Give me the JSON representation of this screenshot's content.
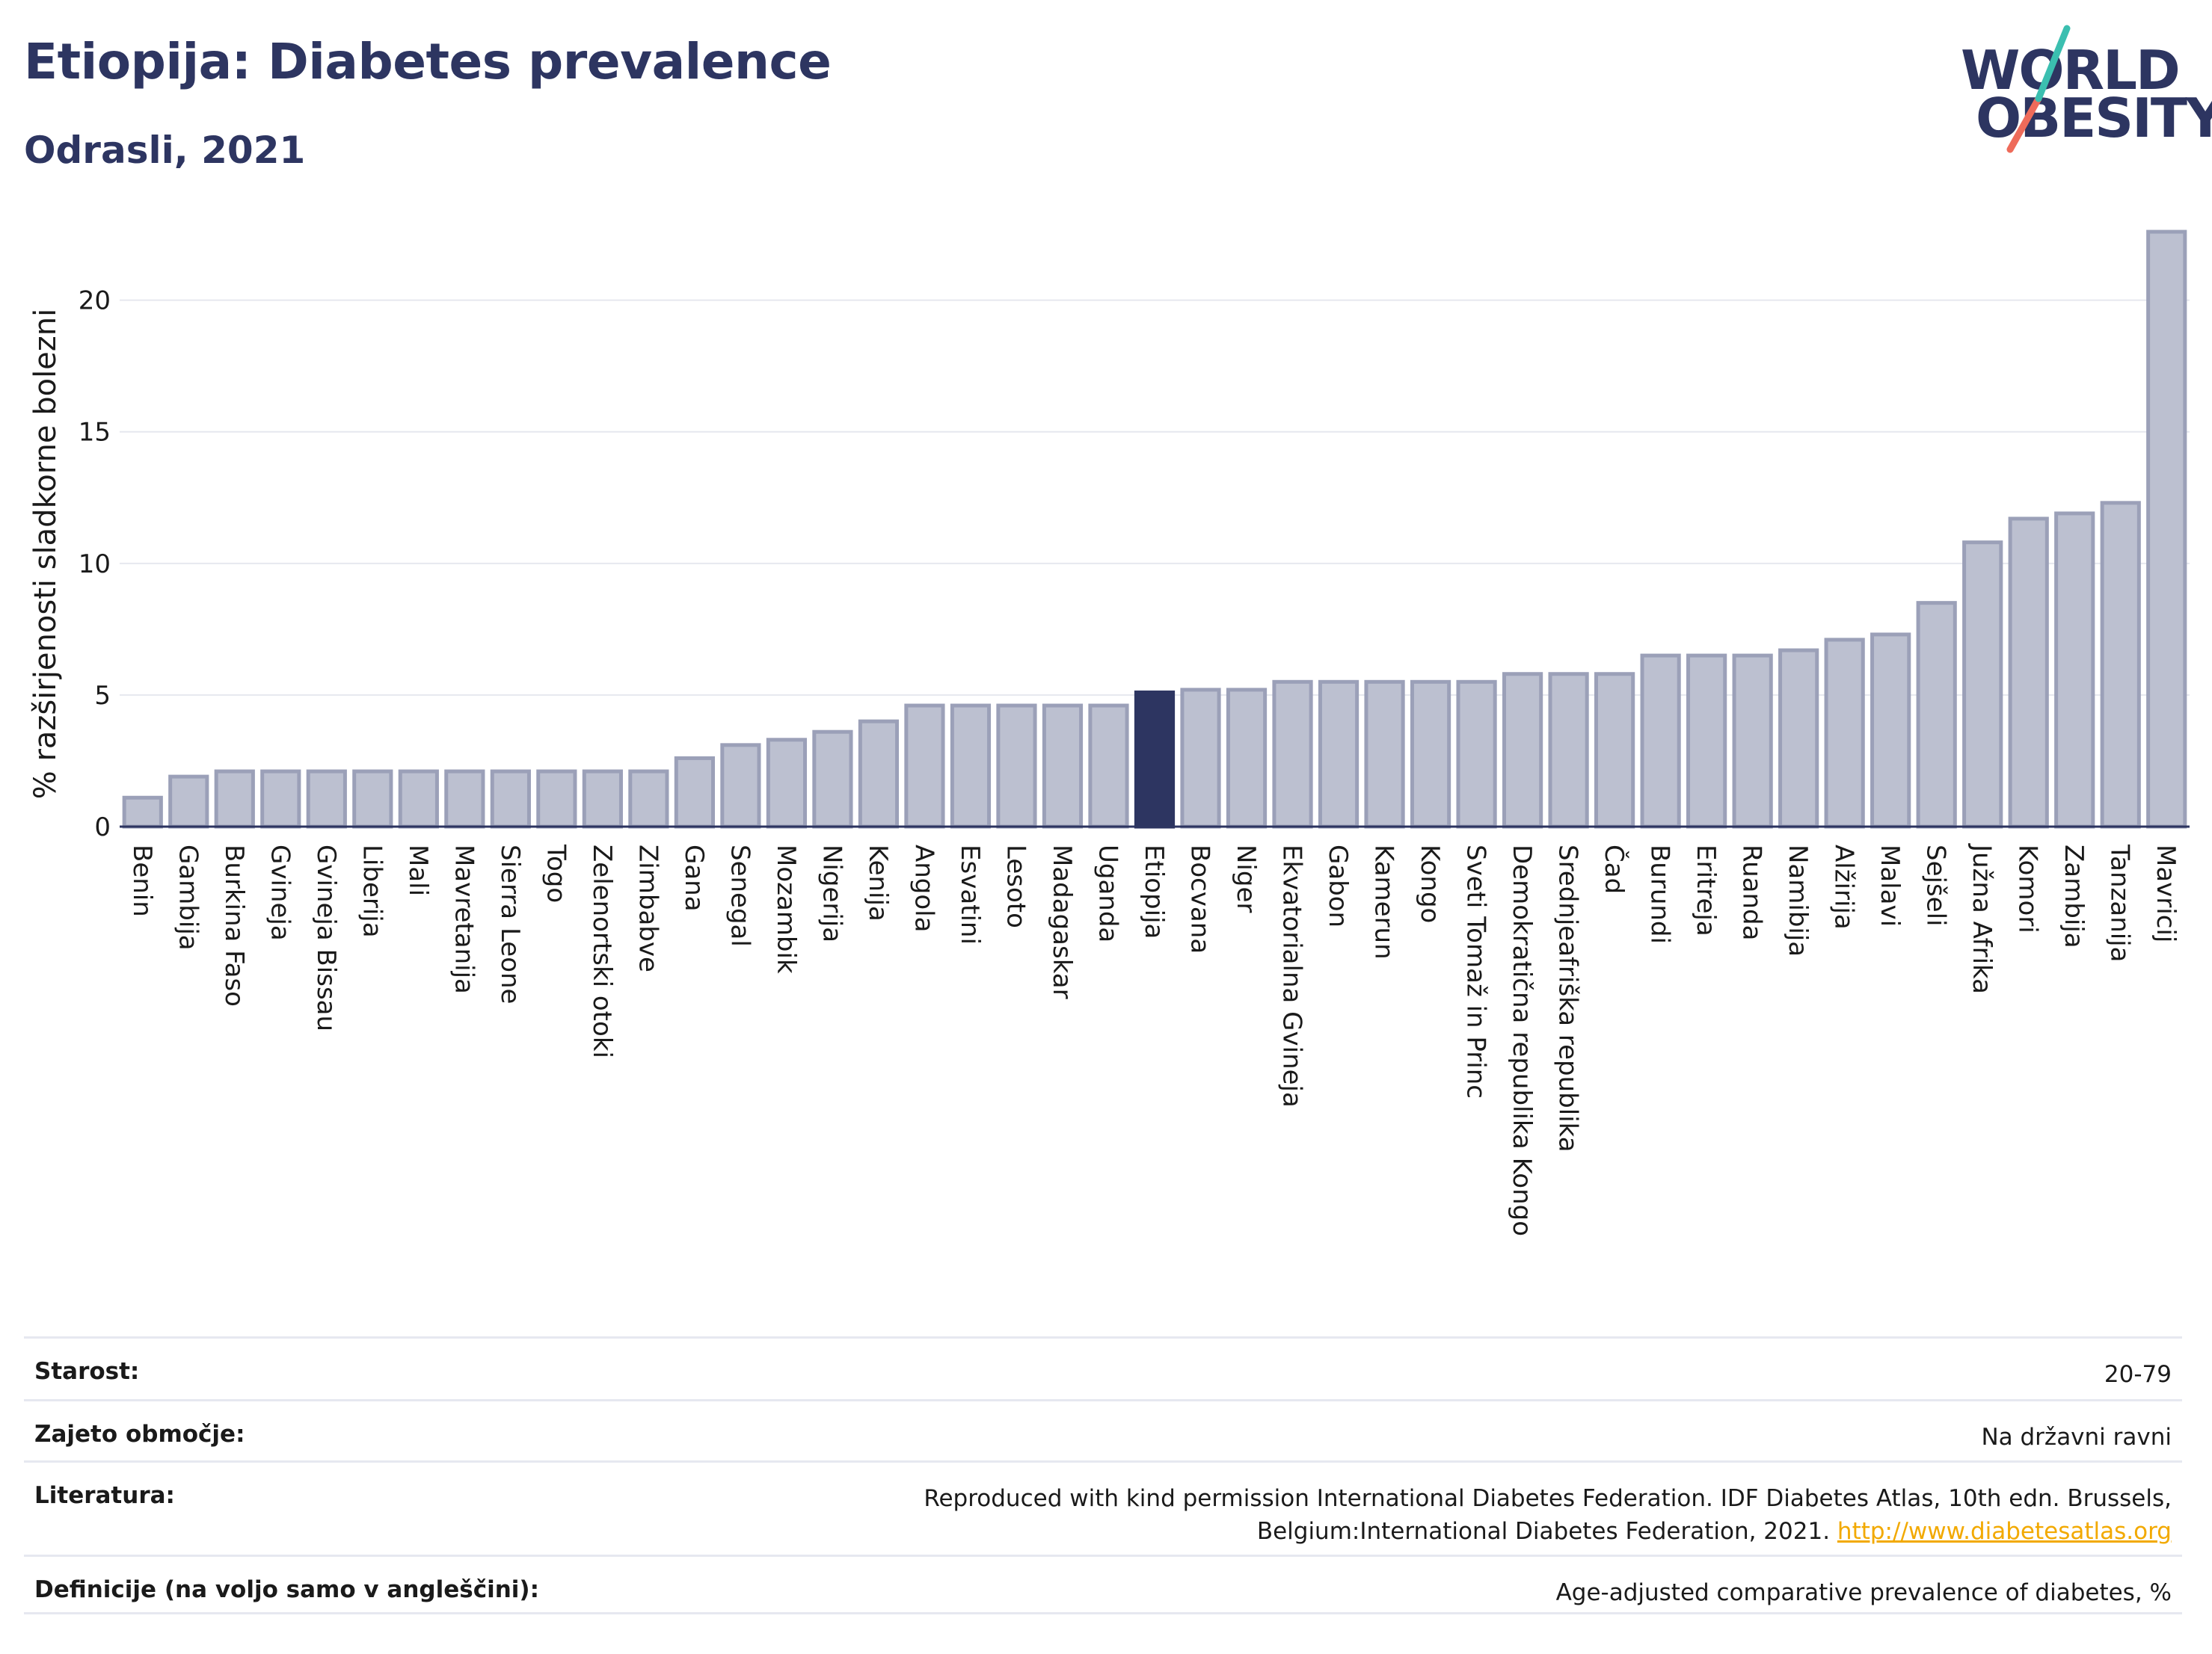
{
  "header": {
    "title": "Etiopija: Diabetes prevalence",
    "subtitle": "Odrasli, 2021"
  },
  "logo": {
    "line1": "WORLD",
    "line2": "OBESITY",
    "colors": {
      "text": "#2d3561",
      "teal": "#3bbfb0",
      "coral": "#ee6b5a"
    }
  },
  "colors": {
    "bar_default": "#bcc0d0",
    "bar_default_stroke": "#9ba0b8",
    "bar_highlight": "#2d3561",
    "grid": "#e6e8ef",
    "axis": "#2d3561",
    "text": "#1a1a1a"
  },
  "chart_data": {
    "type": "bar",
    "ylabel": "% razširjenosti sladkorne bolezni",
    "ylim": [
      0,
      23
    ],
    "yticks": [
      0,
      5,
      10,
      15,
      20
    ],
    "grid": true,
    "highlight": "Etiopija",
    "categories": [
      "Benin",
      "Gambija",
      "Burkina Faso",
      "Gvineja",
      "Gvineja Bissau",
      "Liberija",
      "Mali",
      "Mavretanija",
      "Sierra Leone",
      "Togo",
      "Zelenortski otoki",
      "Zimbabve",
      "Gana",
      "Senegal",
      "Mozambik",
      "Nigerija",
      "Kenija",
      "Angola",
      "Esvatini",
      "Lesoto",
      "Madagaskar",
      "Uganda",
      "Etiopija",
      "Bocvana",
      "Niger",
      "Ekvatorialna Gvineja",
      "Gabon",
      "Kamerun",
      "Kongo",
      "Sveti Tomaž in Princ",
      "Demokratična republika Kongo",
      "Srednjeafriška republika",
      "Čad",
      "Burundi",
      "Eritreja",
      "Ruanda",
      "Namibija",
      "Alžirija",
      "Malavi",
      "Sejšeli",
      "Južna Afrika",
      "Komori",
      "Zambija",
      "Tanzanija",
      "Mavricij"
    ],
    "values": [
      1.1,
      1.9,
      2.1,
      2.1,
      2.1,
      2.1,
      2.1,
      2.1,
      2.1,
      2.1,
      2.1,
      2.1,
      2.6,
      3.1,
      3.3,
      3.6,
      4.0,
      4.6,
      4.6,
      4.6,
      4.6,
      4.6,
      5.1,
      5.2,
      5.2,
      5.5,
      5.5,
      5.5,
      5.5,
      5.5,
      5.8,
      5.8,
      5.8,
      6.5,
      6.5,
      6.5,
      6.7,
      7.1,
      7.3,
      8.5,
      10.8,
      11.7,
      11.9,
      12.3,
      22.6
    ]
  },
  "info": [
    {
      "label": "Starost:",
      "value": "20-79"
    },
    {
      "label": "Zajeto območje:",
      "value": "Na državni ravni"
    },
    {
      "label": "Literatura:",
      "value": "Reproduced with kind permission International Diabetes Federation.  IDF Diabetes Atlas, 10th edn. Brussels, Belgium:International Diabetes Federation, 2021.",
      "link": "http://www.diabetesatlas.org"
    },
    {
      "label": "Definicije (na voljo samo v angleščini):",
      "value": "Age-adjusted comparative prevalence of diabetes, %"
    }
  ]
}
